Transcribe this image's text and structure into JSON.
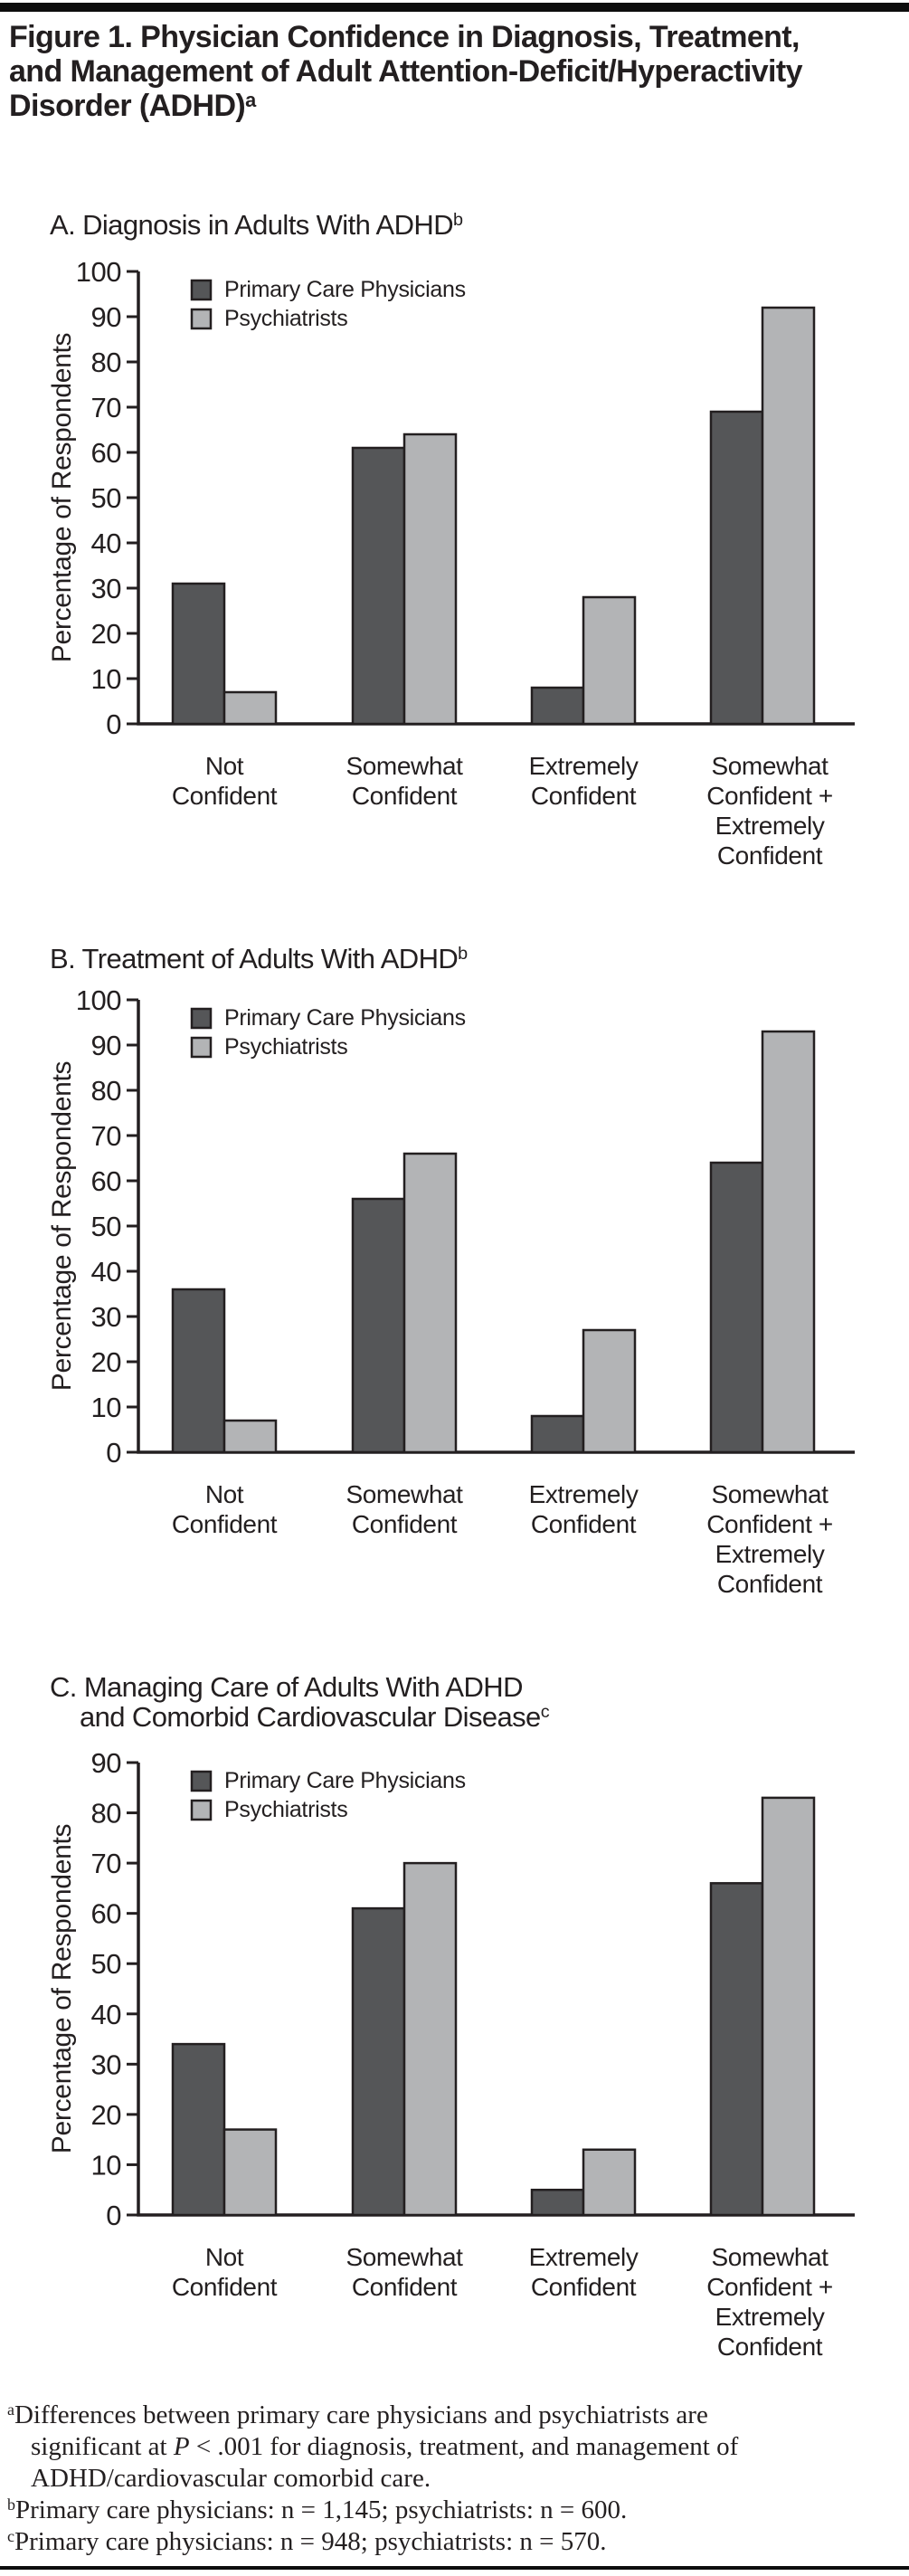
{
  "figure_title": {
    "line1": "Figure 1. Physician Confidence in Diagnosis, Treatment,",
    "line2": "and Management of Adult Attention-Deficit/Hyperactivity",
    "line3": "Disorder (ADHD)",
    "superscript": "a"
  },
  "colors": {
    "ink": "#231f20",
    "bar_dark": "#555658",
    "bar_light": "#b3b4b6",
    "rule": "#0d0d0d",
    "background": "#ffffff"
  },
  "chart_data": [
    {
      "type": "bar",
      "title": "A. Diagnosis in Adults With ADHD",
      "title_sup": "b",
      "ylabel": "Percentage of Respondents",
      "ylim": [
        0,
        100
      ],
      "ytick_step": 10,
      "grid": false,
      "legend_position": "top-left",
      "categories": [
        [
          "Not",
          "Confident"
        ],
        [
          "Somewhat",
          "Confident"
        ],
        [
          "Extremely",
          "Confident"
        ],
        [
          "Somewhat",
          "Confident +",
          "Extremely",
          "Confident"
        ]
      ],
      "series": [
        {
          "name": "Primary Care Physicians",
          "color": "#555658",
          "values": [
            31,
            61,
            8,
            69
          ]
        },
        {
          "name": "Psychiatrists",
          "color": "#b3b4b6",
          "values": [
            7,
            64,
            28,
            92
          ]
        }
      ]
    },
    {
      "type": "bar",
      "title": "B. Treatment of Adults With ADHD",
      "title_sup": "b",
      "ylabel": "Percentage of Respondents",
      "ylim": [
        0,
        100
      ],
      "ytick_step": 10,
      "grid": false,
      "legend_position": "top-left",
      "categories": [
        [
          "Not",
          "Confident"
        ],
        [
          "Somewhat",
          "Confident"
        ],
        [
          "Extremely",
          "Confident"
        ],
        [
          "Somewhat",
          "Confident +",
          "Extremely",
          "Confident"
        ]
      ],
      "series": [
        {
          "name": "Primary Care Physicians",
          "color": "#555658",
          "values": [
            36,
            56,
            8,
            64
          ]
        },
        {
          "name": "Psychiatrists",
          "color": "#b3b4b6",
          "values": [
            7,
            66,
            27,
            93
          ]
        }
      ]
    },
    {
      "type": "bar",
      "title": "C. Managing Care of Adults With ADHD",
      "title2": "and Comorbid Cardiovascular Disease",
      "title2_sup": "c",
      "ylabel": "Percentage of Respondents",
      "ylim": [
        0,
        90
      ],
      "ytick_step": 10,
      "grid": false,
      "legend_position": "top-left",
      "categories": [
        [
          "Not",
          "Confident"
        ],
        [
          "Somewhat",
          "Confident"
        ],
        [
          "Extremely",
          "Confident"
        ],
        [
          "Somewhat",
          "Confident +",
          "Extremely",
          "Confident"
        ]
      ],
      "series": [
        {
          "name": "Primary Care Physicians",
          "color": "#555658",
          "values": [
            34,
            61,
            5,
            66
          ]
        },
        {
          "name": "Psychiatrists",
          "color": "#b3b4b6",
          "values": [
            17,
            70,
            13,
            83
          ]
        }
      ]
    }
  ],
  "footnotes": {
    "a": {
      "sup": "a",
      "line1": "Differences between primary care physicians and psychiatrists are",
      "line2_pre": "significant at ",
      "p_italic": "P",
      "line2_post": " < .001 for diagnosis, treatment, and management of",
      "line3": "ADHD/cardiovascular comorbid care."
    },
    "b": {
      "sup": "b",
      "text": "Primary care physicians: n = 1,145; psychiatrists: n = 600."
    },
    "c": {
      "sup": "c",
      "text": "Primary care physicians: n = 948; psychiatrists: n = 570."
    }
  }
}
